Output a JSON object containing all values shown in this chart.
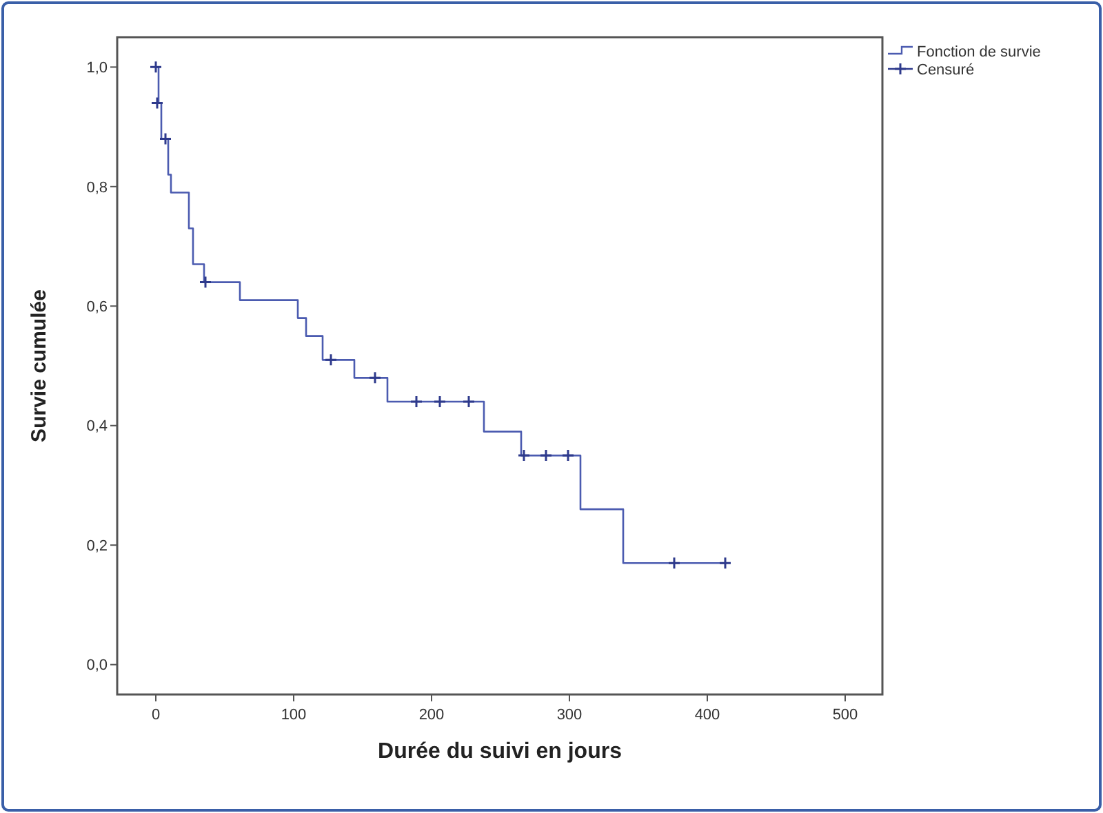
{
  "chart_data": {
    "type": "step",
    "xlabel": "Durée du suivi en jours",
    "ylabel": "Survie cumulée",
    "xlim": [
      -28,
      527
    ],
    "ylim": [
      -0.05,
      1.05
    ],
    "xticks": [
      0,
      100,
      200,
      300,
      400,
      500
    ],
    "yticks": [
      {
        "value": 0,
        "label": "0,0"
      },
      {
        "value": 0.2,
        "label": "0,2"
      },
      {
        "value": 0.4,
        "label": "0,4"
      },
      {
        "value": 0.6,
        "label": "0,6"
      },
      {
        "value": 0.8,
        "label": "0,8"
      },
      {
        "value": 1,
        "label": "1,0"
      }
    ],
    "legend": "top right",
    "grid": false,
    "series": [
      {
        "name": "Fonction de survie",
        "color": "#4b5bb0",
        "marker": "none",
        "x": [
          0,
          2,
          4,
          9,
          11,
          24,
          27,
          35,
          61,
          103,
          109,
          121,
          144,
          168,
          238,
          265,
          308,
          339,
          414
        ],
        "values": [
          1.0,
          0.94,
          0.88,
          0.82,
          0.79,
          0.73,
          0.67,
          0.64,
          0.61,
          0.58,
          0.55,
          0.51,
          0.48,
          0.44,
          0.39,
          0.35,
          0.26,
          0.17,
          0.17
        ]
      },
      {
        "name": "Censuré",
        "type": "scatter",
        "color": "#2e3a8c",
        "marker": "cross",
        "x": [
          0,
          1,
          7,
          36,
          127,
          159,
          189,
          206,
          227,
          267,
          283,
          299,
          376,
          413
        ],
        "values": [
          1.0,
          0.94,
          0.88,
          0.64,
          0.51,
          0.48,
          0.44,
          0.44,
          0.44,
          0.35,
          0.35,
          0.35,
          0.17,
          0.17
        ]
      }
    ]
  }
}
